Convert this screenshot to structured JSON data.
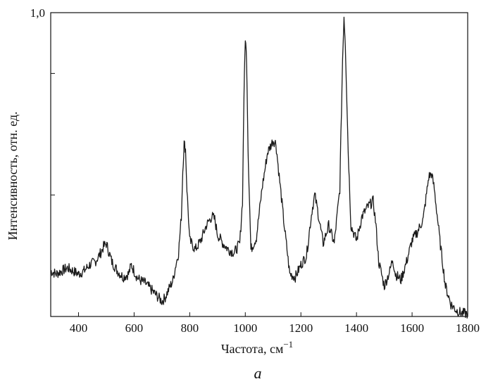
{
  "chart_data": {
    "type": "line",
    "title": "",
    "xlabel": "Частота, см",
    "xlabel_sup": "−1",
    "ylabel": "Интенсивность, отн. ед.",
    "panel_label": "a",
    "xlim": [
      300,
      1800
    ],
    "ylim": [
      0,
      1.0
    ],
    "x_ticks": [
      400,
      600,
      800,
      1000,
      1200,
      1400,
      1600,
      1800
    ],
    "y_ticks": [
      0.4,
      0.8,
      1.0
    ],
    "y_tick_labels": [
      "",
      "",
      "1,0"
    ],
    "grid": false,
    "series": [
      {
        "color": "#1a1a1a",
        "x": [
          300,
          320,
          340,
          360,
          380,
          400,
          420,
          440,
          460,
          480,
          490,
          500,
          510,
          520,
          540,
          560,
          580,
          590,
          600,
          610,
          620,
          640,
          660,
          680,
          700,
          710,
          720,
          740,
          750,
          760,
          770,
          775,
          780,
          785,
          790,
          800,
          820,
          840,
          860,
          880,
          890,
          900,
          920,
          940,
          960,
          980,
          990,
          995,
          1000,
          1005,
          1010,
          1020,
          1040,
          1060,
          1080,
          1100,
          1110,
          1120,
          1140,
          1160,
          1180,
          1200,
          1220,
          1240,
          1250,
          1260,
          1280,
          1300,
          1320,
          1340,
          1350,
          1355,
          1360,
          1370,
          1380,
          1400,
          1420,
          1440,
          1460,
          1470,
          1480,
          1500,
          1520,
          1530,
          1540,
          1560,
          1580,
          1600,
          1620,
          1640,
          1660,
          1670,
          1680,
          1700,
          1720,
          1740,
          1760,
          1780,
          1800
        ],
        "y": [
          0.15,
          0.14,
          0.15,
          0.16,
          0.15,
          0.14,
          0.15,
          0.17,
          0.18,
          0.21,
          0.23,
          0.24,
          0.21,
          0.18,
          0.15,
          0.13,
          0.14,
          0.17,
          0.15,
          0.13,
          0.12,
          0.11,
          0.09,
          0.07,
          0.05,
          0.06,
          0.08,
          0.12,
          0.17,
          0.21,
          0.33,
          0.48,
          0.57,
          0.55,
          0.42,
          0.25,
          0.22,
          0.25,
          0.3,
          0.33,
          0.32,
          0.27,
          0.24,
          0.22,
          0.21,
          0.24,
          0.38,
          0.72,
          0.92,
          0.84,
          0.55,
          0.22,
          0.26,
          0.42,
          0.54,
          0.58,
          0.57,
          0.48,
          0.3,
          0.14,
          0.13,
          0.17,
          0.2,
          0.35,
          0.4,
          0.35,
          0.24,
          0.3,
          0.24,
          0.42,
          0.85,
          0.99,
          0.9,
          0.55,
          0.3,
          0.25,
          0.33,
          0.36,
          0.38,
          0.3,
          0.18,
          0.1,
          0.15,
          0.19,
          0.14,
          0.12,
          0.18,
          0.25,
          0.28,
          0.32,
          0.46,
          0.47,
          0.42,
          0.25,
          0.1,
          0.04,
          0.02,
          0.01,
          0.01
        ]
      }
    ]
  }
}
